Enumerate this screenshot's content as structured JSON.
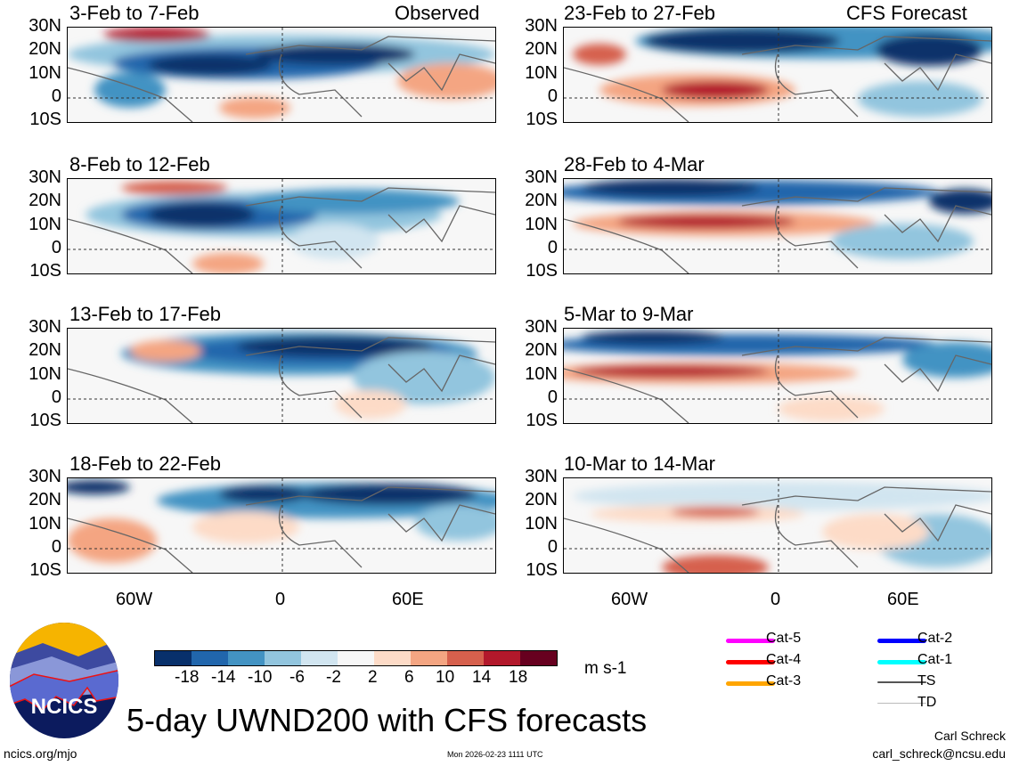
{
  "figure": {
    "title": "5-day UWND200 with CFS forecasts",
    "observed_label": "Observed",
    "forecast_label": "CFS Forecast",
    "units": "m s-1",
    "lat_labels": [
      "30N",
      "20N",
      "10N",
      "0",
      "10S"
    ],
    "lon_labels": [
      "60W",
      "0",
      "60E"
    ],
    "observed_panels": [
      "3-Feb to 7-Feb",
      "8-Feb to 12-Feb",
      "13-Feb to 17-Feb",
      "18-Feb to 22-Feb"
    ],
    "forecast_panels": [
      "23-Feb to 27-Feb",
      "28-Feb to 4-Mar",
      "5-Mar to 9-Mar",
      "10-Mar to 14-Mar"
    ]
  },
  "colorbar": {
    "ticks": [
      "-18",
      "-14",
      "-10",
      "-6",
      "-2",
      "2",
      "6",
      "10",
      "14",
      "18"
    ],
    "colors": [
      "#08306b",
      "#2166ac",
      "#4393c3",
      "#92c5de",
      "#d1e5f0",
      "#f7f7f7",
      "#fddbc7",
      "#f4a582",
      "#d6604d",
      "#b2182b",
      "#67001f"
    ]
  },
  "legend": [
    {
      "label": "Cat-5",
      "color": "#ff00ff"
    },
    {
      "label": "Cat-4",
      "color": "#ff0000"
    },
    {
      "label": "Cat-3",
      "color": "#ffa500"
    },
    {
      "label": "Cat-2",
      "color": "#0000ff"
    },
    {
      "label": "Cat-1",
      "color": "#00ffff"
    },
    {
      "label": "TS",
      "color": "#555555"
    },
    {
      "label": "TD",
      "color": "#bbbbbb"
    }
  ],
  "logo": {
    "text": "NCICS"
  },
  "footer": {
    "url": "ncics.org/mjo",
    "timestamp": "Mon 2026-02-23 1111 UTC",
    "author": "Carl Schreck",
    "email": "carl_schreck@ncsu.edu"
  }
}
